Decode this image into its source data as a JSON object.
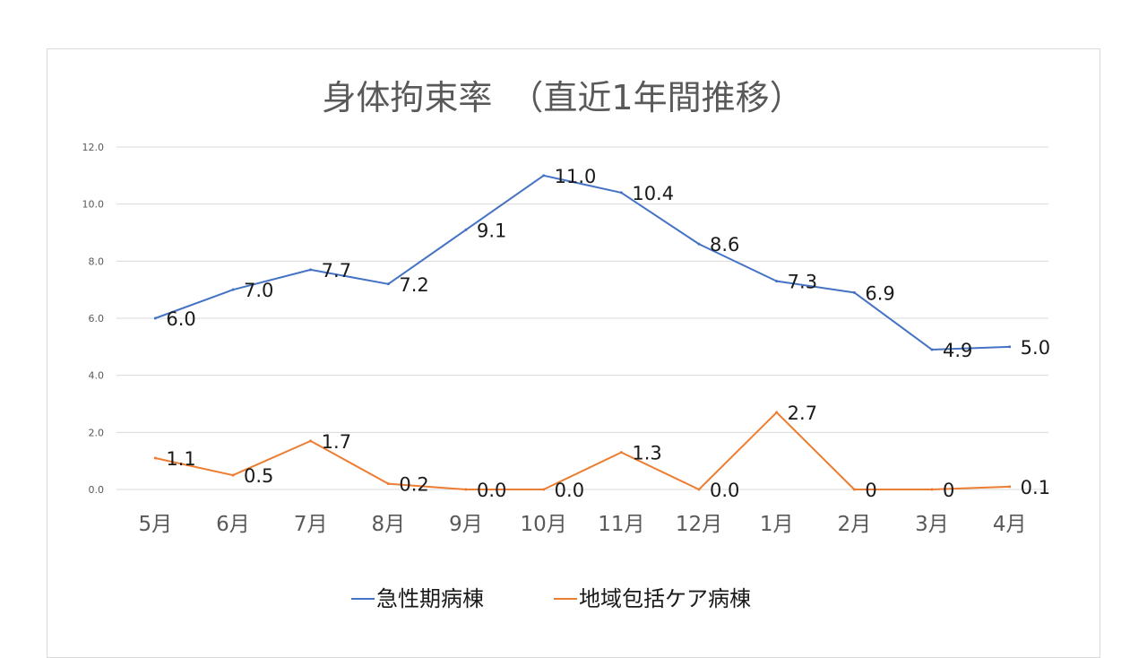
{
  "chart_data": {
    "type": "line",
    "title": "身体拘束率　（直近1年間推移）",
    "categories": [
      "5月",
      "6月",
      "7月",
      "8月",
      "9月",
      "10月",
      "11月",
      "12月",
      "1月",
      "2月",
      "3月",
      "4月"
    ],
    "ylim": [
      0,
      12
    ],
    "yticks": [
      "0.0",
      "2.0",
      "4.0",
      "6.0",
      "8.0",
      "10.0",
      "12.0"
    ],
    "grid": true,
    "legend_position": "bottom",
    "series": [
      {
        "name": "急性期病棟",
        "color": "#4472c4",
        "values": [
          6.0,
          7.0,
          7.7,
          7.2,
          9.1,
          11.0,
          10.4,
          8.6,
          7.3,
          6.9,
          4.9,
          5.0
        ],
        "labels": [
          "6.0",
          "7.0",
          "7.7",
          "7.2",
          "9.1",
          "11.0",
          "10.4",
          "8.6",
          "7.3",
          "6.9",
          "4.9",
          "5.0"
        ]
      },
      {
        "name": "地域包括ケア病棟",
        "color": "#ed7d31",
        "values": [
          1.1,
          0.5,
          1.7,
          0.2,
          0.0,
          0.0,
          1.3,
          0.0,
          2.7,
          0,
          0,
          0.1
        ],
        "labels": [
          "1.1",
          "0.5",
          "1.7",
          "0.2",
          "0.0",
          "0.0",
          "1.3",
          "0.0",
          "2.7",
          "0",
          "0",
          "0.1"
        ]
      }
    ]
  }
}
